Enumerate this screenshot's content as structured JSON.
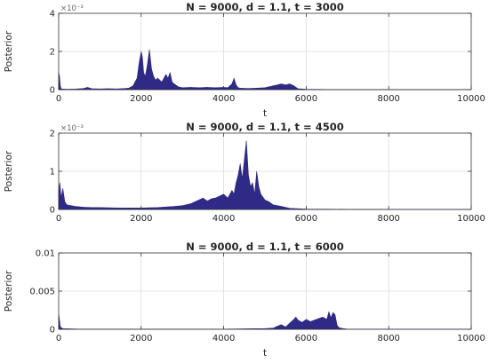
{
  "colors": {
    "fill": "#2e2a85",
    "grid": "#dddddd",
    "axis": "#333333"
  },
  "chart_data": [
    {
      "type": "area",
      "title": "N = 9000, d = 1.1, t = 3000",
      "xlabel": "t",
      "ylabel": "Posterior",
      "xlim": [
        0,
        10000
      ],
      "ylim": [
        0,
        0.004
      ],
      "xticks": [
        0,
        2000,
        4000,
        6000,
        8000,
        10000
      ],
      "xticklabels": [
        "0",
        "2000",
        "4000",
        "6000",
        "8000",
        "10000"
      ],
      "yticks": [
        0,
        0.002,
        0.004
      ],
      "yticklabels": [
        "0",
        "2",
        "4"
      ],
      "yexponent": "×10⁻³",
      "grid": true,
      "series": [
        {
          "x": [
            0,
            20,
            40,
            60,
            100,
            200,
            400,
            600,
            700,
            800,
            1000,
            1200,
            1400,
            1600,
            1700,
            1800,
            1850,
            1900,
            1950,
            2000,
            2030,
            2060,
            2100,
            2150,
            2200,
            2250,
            2300,
            2350,
            2400,
            2500,
            2600,
            2650,
            2700,
            2750,
            2800,
            2900,
            3000,
            3200,
            3400,
            3600,
            3800,
            4000,
            4100,
            4200,
            4250,
            4300,
            4350,
            4400,
            4600,
            4800,
            5000,
            5200,
            5300,
            5400,
            5500,
            5600,
            5700,
            5800,
            6000,
            6500,
            7000,
            8000,
            9000,
            10000
          ],
          "values": [
            0.0009,
            0.0007,
            0.0002,
            5e-05,
            3e-05,
            2e-05,
            3e-05,
            6e-05,
            0.00012,
            5e-05,
            4e-05,
            5e-05,
            4e-05,
            6e-05,
            8e-05,
            0.0002,
            0.0004,
            0.0006,
            0.0014,
            0.002,
            0.0017,
            0.0009,
            0.0007,
            0.0013,
            0.0021,
            0.0011,
            0.0007,
            0.0005,
            0.0006,
            0.0004,
            0.0008,
            0.0006,
            0.0009,
            0.0004,
            0.0003,
            0.00015,
            0.0001,
            0.00012,
            0.0001,
            0.00012,
            0.0001,
            0.00012,
            0.0001,
            0.0003,
            0.0006,
            0.00025,
            0.0001,
            8e-05,
            6e-05,
            8e-05,
            0.0001,
            0.0002,
            0.00025,
            0.0003,
            0.00025,
            0.0003,
            0.0002,
            5e-05,
            2e-05,
            1e-05,
            1e-05,
            1e-05,
            1e-05,
            1e-05
          ]
        }
      ]
    },
    {
      "type": "area",
      "title": "N = 9000, d = 1.1, t = 4500",
      "xlabel": "",
      "ylabel": "Posterior",
      "xlim": [
        0,
        10000
      ],
      "ylim": [
        0,
        0.002
      ],
      "xticks": [
        0,
        2000,
        4000,
        6000,
        8000,
        10000
      ],
      "xticklabels": [
        "0",
        "2000",
        "4000",
        "6000",
        "8000",
        "10000"
      ],
      "yticks": [
        0,
        0.001,
        0.002
      ],
      "yticklabels": [
        "0",
        "1",
        "2"
      ],
      "yexponent": "×10⁻³",
      "grid": true,
      "series": [
        {
          "x": [
            0,
            30,
            60,
            100,
            150,
            200,
            300,
            400,
            600,
            800,
            1000,
            1500,
            2000,
            2400,
            2800,
            3000,
            3200,
            3300,
            3400,
            3500,
            3600,
            3700,
            3800,
            3900,
            4000,
            4100,
            4200,
            4250,
            4300,
            4350,
            4400,
            4450,
            4500,
            4550,
            4600,
            4650,
            4700,
            4750,
            4800,
            4850,
            4900,
            5000,
            5100,
            5200,
            5400,
            5600,
            6000,
            7000,
            8000,
            9000,
            10000
          ],
          "values": [
            0.00045,
            0.0007,
            0.0003,
            0.00055,
            0.0002,
            0.00012,
            0.0001,
            8e-05,
            6e-05,
            5e-05,
            5e-05,
            4e-05,
            4e-05,
            5e-05,
            8e-05,
            0.0001,
            0.00015,
            0.0002,
            0.00025,
            0.0003,
            0.00022,
            0.00028,
            0.0003,
            0.00035,
            0.0004,
            0.0003,
            0.0005,
            0.0004,
            0.0007,
            0.0009,
            0.0012,
            0.0008,
            0.0013,
            0.0018,
            0.0009,
            0.0006,
            0.0007,
            0.0004,
            0.001,
            0.0006,
            0.0004,
            0.00025,
            0.0002,
            0.00012,
            8e-05,
            3e-05,
            1e-05,
            5e-06,
            3e-06,
            2e-06,
            2e-06
          ]
        }
      ]
    },
    {
      "type": "area",
      "title": "N = 9000, d = 1.1, t = 6000",
      "xlabel": "t",
      "ylabel": "Posterior",
      "xlim": [
        0,
        10000
      ],
      "ylim": [
        0,
        0.01
      ],
      "xticks": [
        0,
        2000,
        4000,
        6000,
        8000,
        10000
      ],
      "xticklabels": [
        "0",
        "2000",
        "4000",
        "6000",
        "8000",
        "10000"
      ],
      "yticks": [
        0,
        0.005,
        0.01
      ],
      "yticklabels": [
        "0",
        "0.005",
        "0.01"
      ],
      "yexponent": "",
      "grid": true,
      "series": [
        {
          "x": [
            0,
            20,
            40,
            100,
            500,
            1000,
            2000,
            3000,
            4000,
            5000,
            5200,
            5300,
            5400,
            5500,
            5600,
            5700,
            5750,
            5800,
            5900,
            6000,
            6100,
            6200,
            6300,
            6400,
            6500,
            6550,
            6600,
            6650,
            6700,
            6750,
            6800,
            6900,
            7000,
            7500,
            8000,
            9000,
            10000
          ],
          "values": [
            0.002,
            0.0012,
            0.0003,
            8e-05,
            3e-05,
            2e-05,
            2e-05,
            2e-05,
            2e-05,
            0.0001,
            0.00015,
            0.0004,
            0.0006,
            0.0003,
            0.0008,
            0.0013,
            0.0016,
            0.0012,
            0.0009,
            0.0013,
            0.001,
            0.0012,
            0.0014,
            0.0016,
            0.0013,
            0.0023,
            0.0015,
            0.0022,
            0.0019,
            0.0005,
            0.0002,
            8e-05,
            2e-05,
            1e-05,
            5e-06,
            3e-06,
            2e-06
          ]
        }
      ]
    }
  ]
}
